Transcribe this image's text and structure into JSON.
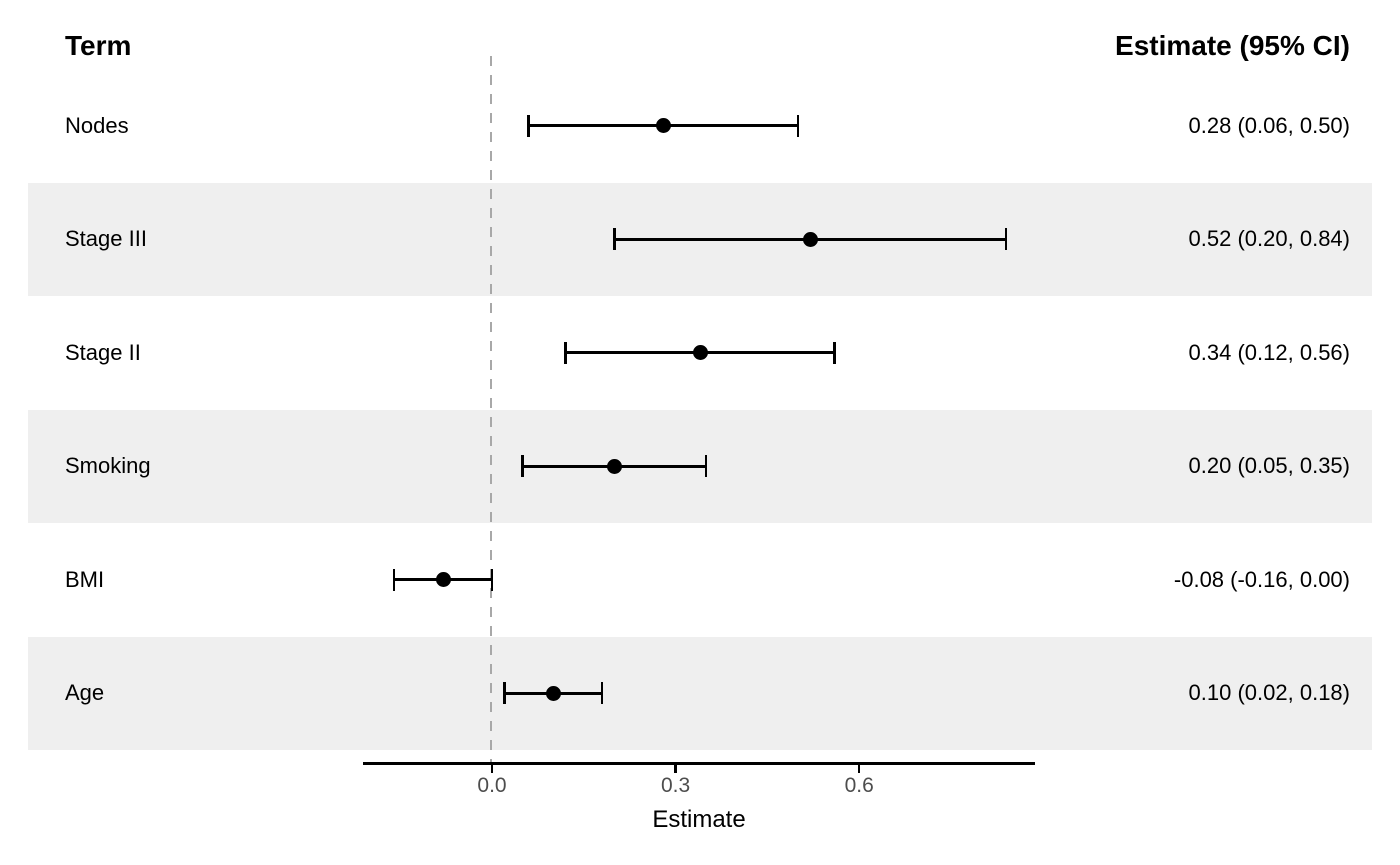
{
  "header": {
    "term_label": "Term",
    "estimate_label": "Estimate (95% CI)"
  },
  "chart_data": {
    "type": "forest",
    "title": "",
    "xlabel": "Estimate",
    "xlim": [
      -0.21,
      0.89
    ],
    "reference_line": 0,
    "legend": "none",
    "grid": "off",
    "rows": [
      {
        "term": "Nodes",
        "estimate": 0.28,
        "ci_low": 0.06,
        "ci_high": 0.5,
        "display": "0.28 (0.06, 0.50)",
        "shaded": false
      },
      {
        "term": "Stage III",
        "estimate": 0.52,
        "ci_low": 0.2,
        "ci_high": 0.84,
        "display": "0.52 (0.20, 0.84)",
        "shaded": true
      },
      {
        "term": "Stage II",
        "estimate": 0.34,
        "ci_low": 0.12,
        "ci_high": 0.56,
        "display": "0.34 (0.12, 0.56)",
        "shaded": false
      },
      {
        "term": "Smoking",
        "estimate": 0.2,
        "ci_low": 0.05,
        "ci_high": 0.35,
        "display": "0.20 (0.05, 0.35)",
        "shaded": true
      },
      {
        "term": "BMI",
        "estimate": -0.08,
        "ci_low": -0.16,
        "ci_high": 0.0,
        "display": "-0.08 (-0.16, 0.00)",
        "shaded": false
      },
      {
        "term": "Age",
        "estimate": 0.1,
        "ci_low": 0.02,
        "ci_high": 0.18,
        "display": "0.10 (0.02, 0.18)",
        "shaded": true
      }
    ],
    "xaxis": {
      "label": "Estimate",
      "ticks": [
        {
          "value": 0.0,
          "label": "0.0"
        },
        {
          "value": 0.3,
          "label": "0.3"
        },
        {
          "value": 0.6,
          "label": "0.6"
        }
      ]
    },
    "colors": {
      "band": "#efefef",
      "reference_line": "#a8a8a8",
      "marker": "#000000",
      "axis": "#000000",
      "tick_text": "#4d4d4d",
      "text": "#000000"
    }
  }
}
